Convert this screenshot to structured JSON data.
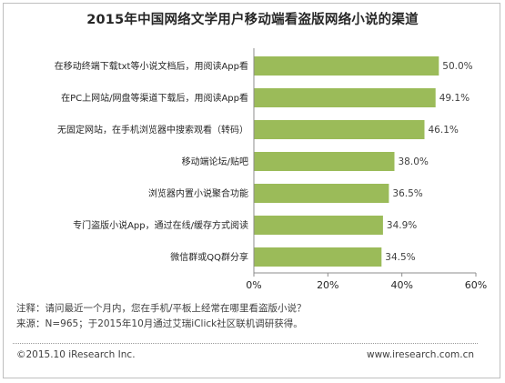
{
  "chart_data": {
    "type": "bar",
    "orientation": "horizontal",
    "title": "2015年中国网络文学用户移动端看盗版网络小说的渠道",
    "categories": [
      "在移动终端下载txt等小说文档后，用阅读App看",
      "在PC上网站/网盘等渠道下载后，用阅读App看",
      "无固定网站，在手机浏览器中搜索观看（转码）",
      "移动端论坛/贴吧",
      "浏览器内置小说聚合功能",
      "专门盗版小说App，通过在线/缓存方式阅读",
      "微信群或QQ群分享"
    ],
    "values": [
      50.0,
      49.1,
      46.1,
      38.0,
      36.5,
      34.9,
      34.5
    ],
    "data_labels": [
      "50.0%",
      "49.1%",
      "46.1%",
      "38.0%",
      "36.5%",
      "34.9%",
      "34.5%"
    ],
    "xlim": [
      0,
      60
    ],
    "xticks": [
      0,
      20,
      40,
      60
    ],
    "xtick_labels": [
      "0%",
      "20%",
      "40%",
      "60%"
    ],
    "bar_color": "#9bbb59",
    "grid": false,
    "legend": "none"
  },
  "notes": {
    "line1": "注释：请问最近一个月内，您在手机/平板上经常在哪里看盗版小说？",
    "line2": "来源：N=965；于2015年10月通过艾瑞iClick社区联机调研获得。"
  },
  "footer": {
    "copyright": "©2015.10 iResearch Inc.",
    "website": "www.iresearch.com.cn"
  }
}
